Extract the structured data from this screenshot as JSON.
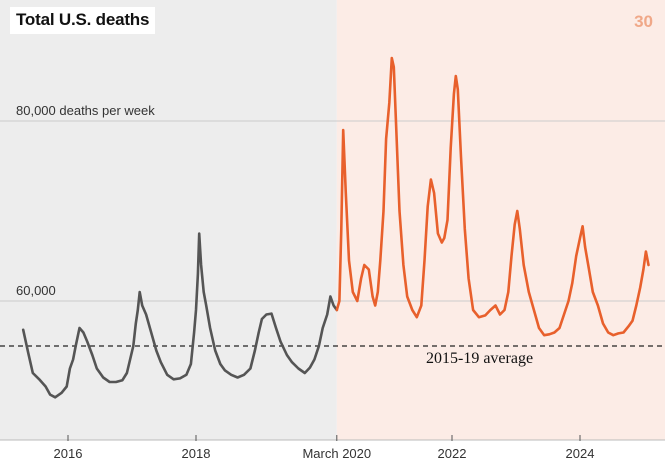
{
  "title": "Total U.S. deaths",
  "corner_number": "30",
  "colors": {
    "pre_line": "#555555",
    "post_line": "#e8602c",
    "pre_bg": "#ededed",
    "post_bg": "#fcece6",
    "corner_number": "#f0a888"
  },
  "chart_data": {
    "type": "line",
    "title": "Total U.S. deaths",
    "ylabel": "deaths per week",
    "xlim": [
      2015.3,
      2025.25
    ],
    "ylim": [
      48000,
      88000
    ],
    "split_x": 2020.2,
    "grid": true,
    "y_gridlines": [
      {
        "value": 80000,
        "label": "80,000 deaths per week"
      },
      {
        "value": 60000,
        "label": "60,000"
      }
    ],
    "x_ticks": [
      {
        "value": 2016,
        "label": "2016"
      },
      {
        "value": 2018,
        "label": "2018"
      },
      {
        "value": 2020.2,
        "label": "March 2020"
      },
      {
        "value": 2022,
        "label": "2022"
      },
      {
        "value": 2024,
        "label": "2024"
      }
    ],
    "reference_line": {
      "label": "2015-19 average",
      "value": 55000,
      "style": "dashed"
    },
    "series": [
      {
        "segment": "before March 2020",
        "points": [
          [
            2015.3,
            56800
          ],
          [
            2015.38,
            54200
          ],
          [
            2015.45,
            52000
          ],
          [
            2015.55,
            51300
          ],
          [
            2015.65,
            50500
          ],
          [
            2015.72,
            49600
          ],
          [
            2015.8,
            49300
          ],
          [
            2015.9,
            49800
          ],
          [
            2015.98,
            50500
          ],
          [
            2016.03,
            52500
          ],
          [
            2016.08,
            53500
          ],
          [
            2016.12,
            55000
          ],
          [
            2016.18,
            57000
          ],
          [
            2016.24,
            56500
          ],
          [
            2016.3,
            55500
          ],
          [
            2016.38,
            54000
          ],
          [
            2016.45,
            52500
          ],
          [
            2016.55,
            51500
          ],
          [
            2016.65,
            51000
          ],
          [
            2016.75,
            51000
          ],
          [
            2016.85,
            51200
          ],
          [
            2016.92,
            52000
          ],
          [
            2016.97,
            53500
          ],
          [
            2017.02,
            55000
          ],
          [
            2017.06,
            57500
          ],
          [
            2017.09,
            59000
          ],
          [
            2017.12,
            61000
          ],
          [
            2017.16,
            59500
          ],
          [
            2017.22,
            58500
          ],
          [
            2017.3,
            56500
          ],
          [
            2017.38,
            54500
          ],
          [
            2017.45,
            53200
          ],
          [
            2017.55,
            51800
          ],
          [
            2017.65,
            51300
          ],
          [
            2017.75,
            51400
          ],
          [
            2017.85,
            51800
          ],
          [
            2017.92,
            53000
          ],
          [
            2017.97,
            56500
          ],
          [
            2018.0,
            59000
          ],
          [
            2018.03,
            63000
          ],
          [
            2018.05,
            67500
          ],
          [
            2018.08,
            64000
          ],
          [
            2018.12,
            61000
          ],
          [
            2018.16,
            59500
          ],
          [
            2018.22,
            57000
          ],
          [
            2018.3,
            54500
          ],
          [
            2018.38,
            53000
          ],
          [
            2018.45,
            52300
          ],
          [
            2018.55,
            51800
          ],
          [
            2018.65,
            51500
          ],
          [
            2018.75,
            51800
          ],
          [
            2018.85,
            52500
          ],
          [
            2018.92,
            54500
          ],
          [
            2018.98,
            56500
          ],
          [
            2019.03,
            58000
          ],
          [
            2019.1,
            58500
          ],
          [
            2019.18,
            58600
          ],
          [
            2019.25,
            57000
          ],
          [
            2019.32,
            55500
          ],
          [
            2019.42,
            54000
          ],
          [
            2019.5,
            53200
          ],
          [
            2019.6,
            52500
          ],
          [
            2019.7,
            52000
          ],
          [
            2019.78,
            52600
          ],
          [
            2019.85,
            53500
          ],
          [
            2019.92,
            55000
          ],
          [
            2019.98,
            57000
          ],
          [
            2020.05,
            58500
          ],
          [
            2020.1,
            60500
          ],
          [
            2020.15,
            59500
          ],
          [
            2020.2,
            59000
          ]
        ]
      },
      {
        "segment": "after March 2020",
        "points": [
          [
            2020.2,
            59000
          ],
          [
            2020.24,
            60000
          ],
          [
            2020.27,
            68000
          ],
          [
            2020.3,
            79000
          ],
          [
            2020.34,
            72000
          ],
          [
            2020.39,
            64500
          ],
          [
            2020.45,
            61000
          ],
          [
            2020.52,
            60000
          ],
          [
            2020.58,
            62500
          ],
          [
            2020.63,
            64000
          ],
          [
            2020.7,
            63500
          ],
          [
            2020.76,
            60500
          ],
          [
            2020.8,
            59500
          ],
          [
            2020.84,
            61000
          ],
          [
            2020.88,
            64500
          ],
          [
            2020.93,
            70000
          ],
          [
            2020.97,
            78000
          ],
          [
            2021.02,
            82000
          ],
          [
            2021.06,
            87000
          ],
          [
            2021.09,
            86000
          ],
          [
            2021.13,
            79000
          ],
          [
            2021.18,
            70000
          ],
          [
            2021.24,
            64000
          ],
          [
            2021.3,
            60500
          ],
          [
            2021.38,
            59000
          ],
          [
            2021.45,
            58200
          ],
          [
            2021.52,
            59500
          ],
          [
            2021.57,
            64500
          ],
          [
            2021.62,
            70500
          ],
          [
            2021.67,
            73500
          ],
          [
            2021.72,
            72000
          ],
          [
            2021.78,
            67500
          ],
          [
            2021.84,
            66500
          ],
          [
            2021.88,
            67000
          ],
          [
            2021.93,
            69000
          ],
          [
            2021.98,
            77000
          ],
          [
            2022.03,
            83000
          ],
          [
            2022.06,
            85000
          ],
          [
            2022.09,
            83500
          ],
          [
            2022.14,
            76000
          ],
          [
            2022.2,
            68000
          ],
          [
            2022.26,
            62500
          ],
          [
            2022.33,
            59000
          ],
          [
            2022.42,
            58200
          ],
          [
            2022.52,
            58400
          ],
          [
            2022.6,
            59000
          ],
          [
            2022.68,
            59500
          ],
          [
            2022.75,
            58500
          ],
          [
            2022.82,
            59000
          ],
          [
            2022.88,
            61000
          ],
          [
            2022.93,
            65000
          ],
          [
            2022.98,
            68500
          ],
          [
            2023.02,
            70000
          ],
          [
            2023.06,
            68000
          ],
          [
            2023.12,
            64000
          ],
          [
            2023.2,
            61000
          ],
          [
            2023.28,
            59000
          ],
          [
            2023.36,
            57000
          ],
          [
            2023.44,
            56200
          ],
          [
            2023.52,
            56300
          ],
          [
            2023.6,
            56500
          ],
          [
            2023.68,
            57000
          ],
          [
            2023.75,
            58500
          ],
          [
            2023.82,
            60000
          ],
          [
            2023.88,
            62000
          ],
          [
            2023.94,
            65000
          ],
          [
            2024.0,
            67000
          ],
          [
            2024.04,
            68300
          ],
          [
            2024.08,
            66000
          ],
          [
            2024.14,
            63500
          ],
          [
            2024.2,
            61000
          ],
          [
            2024.28,
            59500
          ],
          [
            2024.36,
            57500
          ],
          [
            2024.44,
            56500
          ],
          [
            2024.52,
            56200
          ],
          [
            2024.6,
            56400
          ],
          [
            2024.68,
            56500
          ],
          [
            2024.76,
            57200
          ],
          [
            2024.82,
            57800
          ],
          [
            2024.88,
            59500
          ],
          [
            2024.94,
            61500
          ],
          [
            2024.99,
            63500
          ],
          [
            2025.03,
            65500
          ],
          [
            2025.07,
            64000
          ]
        ]
      }
    ]
  }
}
